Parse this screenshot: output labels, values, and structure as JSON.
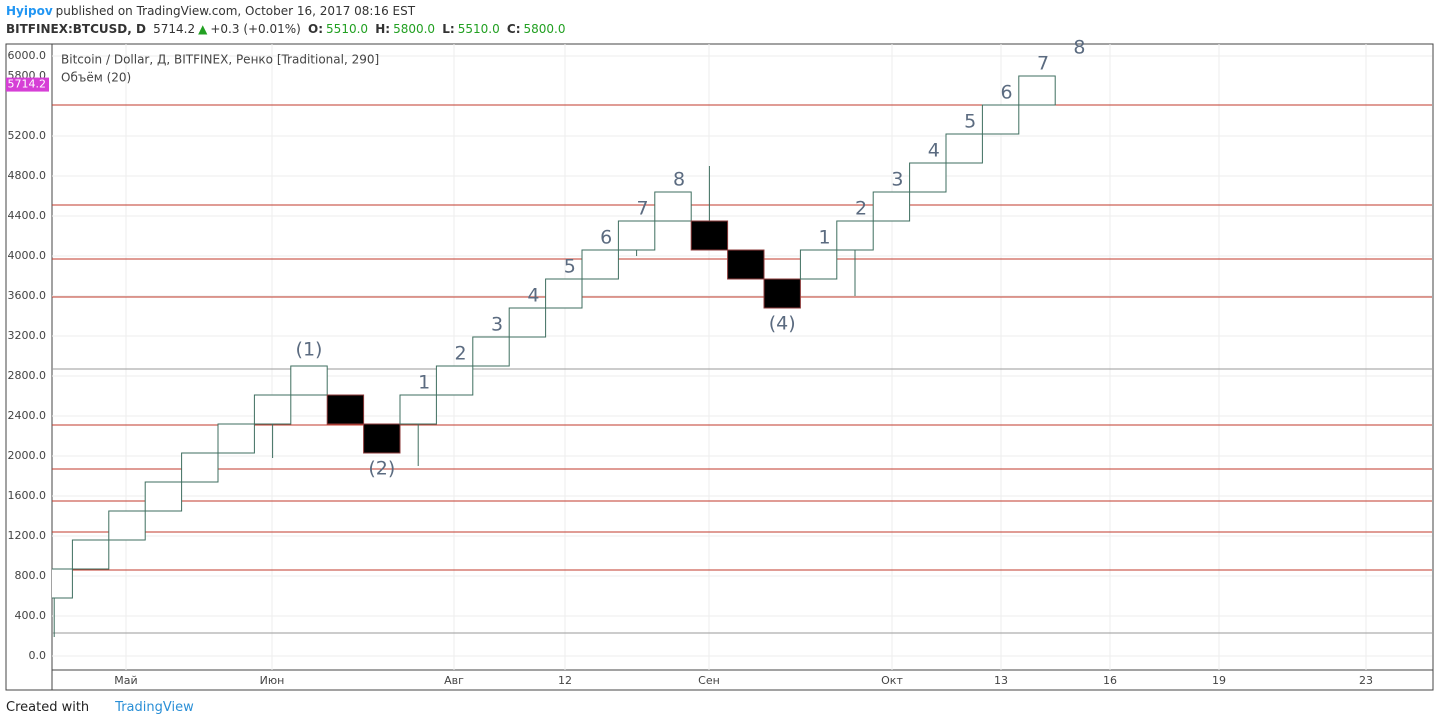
{
  "header": {
    "author": "Hyipov",
    "published": "published on TradingView.com, October 16, 2017 08:16 EST",
    "symbol": "BITFINEX:BTCUSD, D",
    "price": "5714.2",
    "arrow": "▲",
    "change": "+0.3 (+0.01%)",
    "o_label": "O:",
    "o": "5510.0",
    "h_label": "H:",
    "h": "5800.0",
    "l_label": "L:",
    "l": "5510.0",
    "c_label": "C:",
    "c": "5800.0"
  },
  "footer": {
    "created": "Created with",
    "brand": "TradingView"
  },
  "chart_data": {
    "type": "renko",
    "title": "Bitcoin / Dollar, Д, BITFINEX, Ренко [Traditional, 290]",
    "subtitle": "Объём (20)",
    "open": [
      580,
      870,
      1160,
      1450,
      1740,
      2030,
      2320,
      2610,
      2610,
      2320,
      2320,
      2610,
      2900,
      3190,
      3480,
      3770,
      4060,
      4350,
      4350,
      4060,
      3770,
      3770,
      4060,
      4350,
      4640,
      4930,
      5220,
      5510
    ],
    "close": [
      870,
      1160,
      1450,
      1740,
      2030,
      2320,
      2610,
      2900,
      2320,
      2030,
      2610,
      2900,
      3190,
      3480,
      3770,
      4060,
      4350,
      4640,
      4060,
      3770,
      3480,
      4060,
      4350,
      4640,
      4930,
      5220,
      5510,
      5800
    ],
    "wicks": [
      190,
      null,
      null,
      null,
      null,
      null,
      1980,
      null,
      null,
      null,
      1900,
      null,
      null,
      null,
      null,
      null,
      4000,
      null,
      4900,
      null,
      null,
      null,
      3600,
      null,
      null,
      null,
      null,
      null
    ],
    "brick_labels": [
      null,
      null,
      null,
      null,
      null,
      null,
      null,
      "(1)",
      null,
      "(2)",
      "1",
      "2",
      "3",
      "4",
      "5",
      "6",
      "7",
      "8",
      null,
      null,
      "(4)",
      "1",
      "2",
      "3",
      "4",
      "5",
      "6",
      "7"
    ],
    "extra_label": "8",
    "up_color": "#3e6e5f",
    "down_color": "#000000",
    "down_border": "#8b3a3a",
    "ylim": [
      -140,
      6120
    ],
    "yticks": [
      {
        "value": 0,
        "label": "0.0"
      },
      {
        "value": 400,
        "label": "400.0"
      },
      {
        "value": 800,
        "label": "800.0"
      },
      {
        "value": 1200,
        "label": "1200.0"
      },
      {
        "value": 1600,
        "label": "1600.0"
      },
      {
        "value": 2000,
        "label": "2000.0"
      },
      {
        "value": 2400,
        "label": "2400.0"
      },
      {
        "value": 2800,
        "label": "2800.0"
      },
      {
        "value": 3200,
        "label": "3200.0"
      },
      {
        "value": 3600,
        "label": "3600.0"
      },
      {
        "value": 4000,
        "label": "4000.0"
      },
      {
        "value": 4400,
        "label": "4400.0"
      },
      {
        "value": 4800,
        "label": "4800.0"
      },
      {
        "value": 5200,
        "label": "5200.0"
      },
      {
        "value": 6000,
        "label": "6000.0"
      }
    ],
    "close_tag": {
      "value": 5800,
      "label": "5800.0"
    },
    "price_tag": {
      "value": 5714.2,
      "label": "5714.2",
      "color": "#d63fd6"
    },
    "xticks": [
      "Май",
      "Июн",
      "Авг",
      "12",
      "Сен",
      "Окт",
      "13",
      "16",
      "19",
      "23"
    ],
    "hlines": [
      {
        "value": 5510,
        "color": "#c0392b"
      },
      {
        "value": 4510,
        "color": "#c0392b"
      },
      {
        "value": 3970,
        "color": "#c0392b"
      },
      {
        "value": 3590,
        "color": "#c0392b"
      },
      {
        "value": 2310,
        "color": "#c0392b"
      },
      {
        "value": 1870,
        "color": "#c0392b"
      },
      {
        "value": 1550,
        "color": "#c0392b"
      },
      {
        "value": 1240,
        "color": "#c0392b"
      },
      {
        "value": 860,
        "color": "#c0392b"
      },
      {
        "value": 2870,
        "color": "#999999"
      },
      {
        "value": 230,
        "color": "#999999"
      }
    ],
    "grid": true
  }
}
